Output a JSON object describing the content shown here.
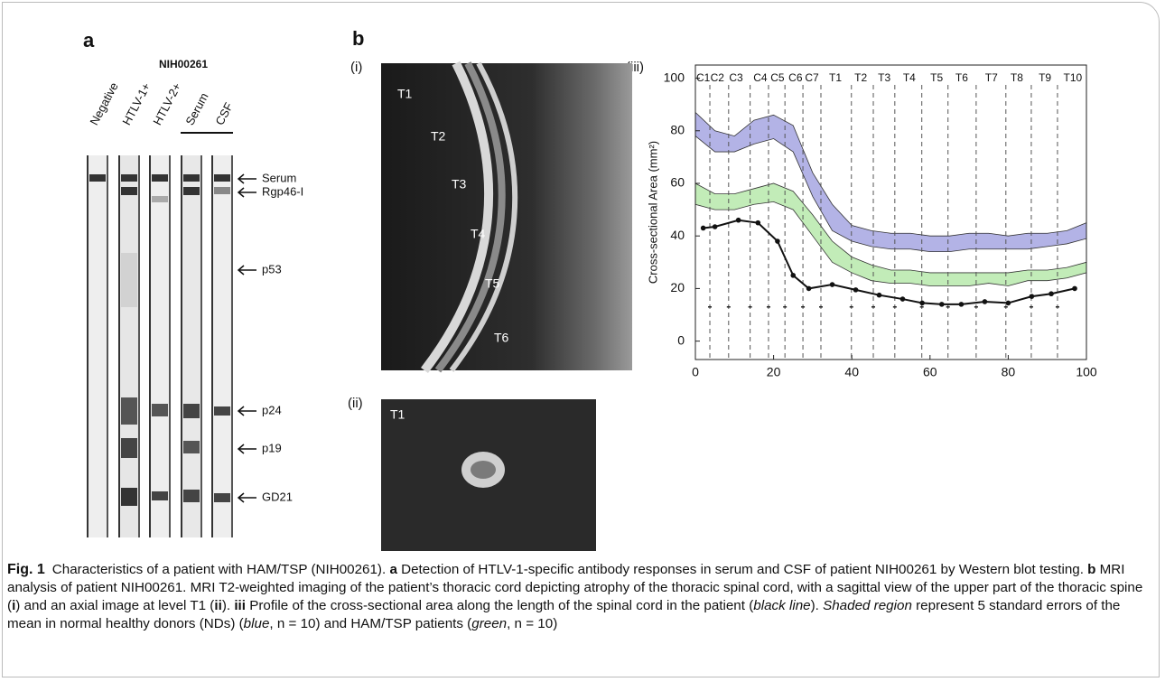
{
  "panel_a": {
    "label": "a",
    "group_label": "NIH00261",
    "lanes": [
      "Negative",
      "HTLV-1+",
      "HTLV-2+",
      "Serum",
      "CSF"
    ],
    "bands": [
      "Serum",
      "Rgp46-I",
      "p53",
      "p24",
      "p19",
      "GD21"
    ]
  },
  "panel_b": {
    "label": "b",
    "sub_i": "(i)",
    "sub_ii": "(ii)",
    "sub_iii": "(iii)",
    "sagittal_levels": [
      "T1",
      "T2",
      "T3",
      "T4",
      "T5",
      "T6"
    ],
    "axial_level": "T1"
  },
  "chart_data": {
    "type": "band-line",
    "y_label": "Cross-sectional Area (mm²)",
    "xlim": [
      0,
      100
    ],
    "ylim": [
      -7,
      105
    ],
    "xticks": [
      0,
      20,
      40,
      60,
      80,
      100
    ],
    "yticks": [
      0,
      20,
      40,
      60,
      80,
      100
    ],
    "levels": [
      "C1",
      "C2",
      "C3",
      "C4",
      "C5",
      "C6",
      "C7",
      "T1",
      "T2",
      "T3",
      "T4",
      "T5",
      "T6",
      "T7",
      "T8",
      "T9",
      "T10"
    ],
    "level_x": [
      2,
      5.6,
      10.4,
      16.6,
      21,
      25.6,
      29.8,
      35.8,
      42.3,
      48.3,
      54.7,
      61.7,
      68.1,
      75.7,
      82.2,
      89.4,
      96.5
    ],
    "boundaries": [
      3.7,
      8.5,
      14,
      18.7,
      22.9,
      27.5,
      32.1,
      39.9,
      45.5,
      51,
      57.9,
      64.6,
      71.8,
      79.4,
      85.9,
      92.6
    ],
    "boundary_markers": [
      13,
      13,
      13,
      13,
      13,
      13,
      13,
      13,
      13,
      13,
      13,
      13,
      13,
      13,
      13,
      13
    ],
    "band_x": [
      0,
      5,
      10,
      15,
      20,
      25,
      30,
      35,
      40,
      45,
      50,
      55,
      60,
      65,
      70,
      75,
      80,
      85,
      90,
      95,
      100
    ],
    "bands": [
      {
        "color": "#b3b3e6",
        "lower": [
          78,
          72,
          72,
          75,
          77,
          72,
          55,
          42,
          38,
          36,
          35,
          35,
          34,
          34,
          35,
          35,
          35,
          35,
          36,
          37,
          39
        ],
        "upper": [
          87,
          80,
          78,
          84,
          86,
          82,
          64,
          52,
          44,
          42,
          41,
          41,
          40,
          40,
          41,
          41,
          40,
          41,
          41,
          42,
          45
        ]
      },
      {
        "color": "#c2ecb8",
        "lower": [
          52,
          50,
          50,
          52,
          53,
          50,
          40,
          30,
          26,
          23,
          22,
          22,
          21,
          21,
          21,
          22,
          21,
          23,
          23,
          24,
          26
        ],
        "upper": [
          60,
          56,
          56,
          58,
          60,
          57,
          48,
          38,
          32,
          29,
          27,
          27,
          26,
          26,
          26,
          26,
          26,
          27,
          27,
          28,
          30
        ]
      }
    ],
    "line": {
      "color": "#111111",
      "x": [
        2,
        5,
        11,
        16,
        21,
        25,
        29,
        35,
        41,
        47,
        53,
        58,
        63,
        68,
        74,
        80,
        86,
        91,
        97
      ],
      "values": [
        43,
        43.5,
        46,
        45,
        38,
        25,
        20,
        21.5,
        19.5,
        17.5,
        16,
        14.5,
        14,
        14,
        15,
        14.5,
        17,
        18,
        20
      ]
    }
  },
  "caption": {
    "label": "Fig. 1",
    "parts": [
      "Characteristics of a patient with HAM/TSP (NIH00261). ",
      "a",
      " Detection of HTLV-1-specific antibody responses in serum and CSF of patient NIH00261 by Western blot testing. ",
      "b",
      " MRI analysis of patient NIH00261. MRI T2-weighted imaging of the patient’s thoracic cord depicting atrophy of the thoracic spinal cord, with a sagittal view of the upper part of the thoracic spine (",
      "i",
      ") and an axial image at level T1 (",
      "ii",
      "). ",
      "iii",
      " Profile of the cross-sectional area along the length of the spinal cord in the patient (",
      "black line",
      "). ",
      "Shaded region",
      " represent 5 standard errors of the mean in normal healthy donors (NDs) (",
      "blue",
      ", n = 10) and HAM/TSP patients (",
      "green",
      ", n = 10)"
    ]
  }
}
